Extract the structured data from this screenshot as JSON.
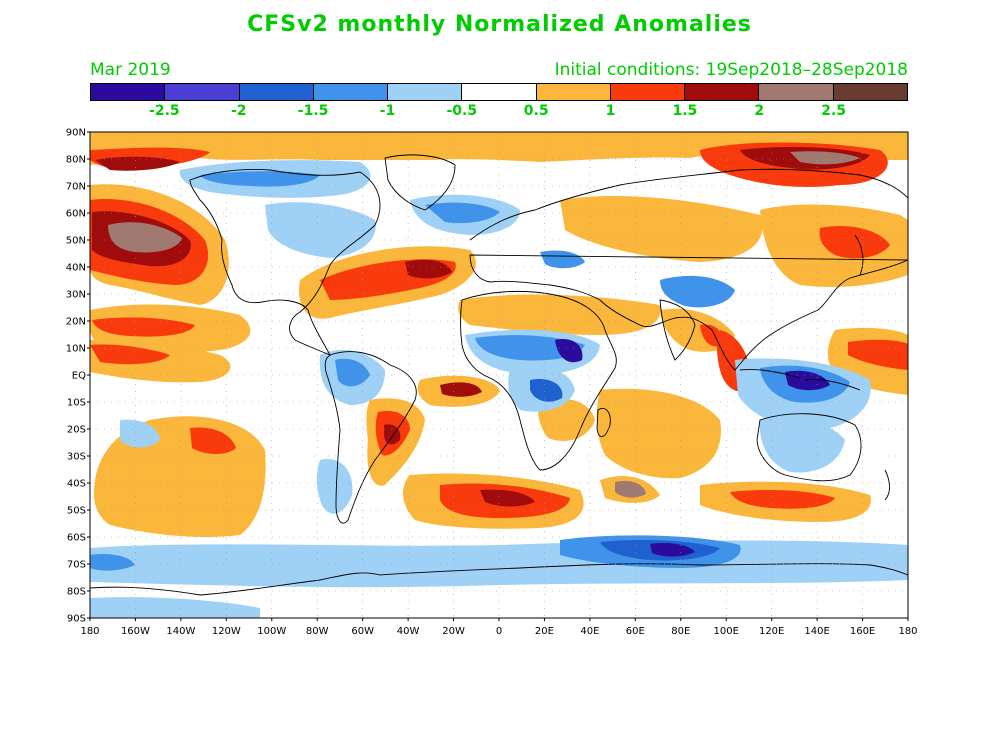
{
  "title": "CFSv2 monthly Normalized Anomalies",
  "month": "Mar 2019",
  "initial_conditions": "Initial conditions: 19Sep2018–28Sep2018",
  "text_color": "#00cc00",
  "colorbar": {
    "colors": [
      "#2b0a9e",
      "#4b3fd1",
      "#1f62cf",
      "#3f93ea",
      "#9fd0f6",
      "#ffffff",
      "#fbb73b",
      "#f83a0c",
      "#a00b0b",
      "#a07a70",
      "#6a3b30"
    ],
    "labels": [
      "-2.5",
      "-2",
      "-1.5",
      "-1",
      "-0.5",
      "0.5",
      "1",
      "1.5",
      "2",
      "2.5"
    ]
  },
  "axes": {
    "lat_labels": [
      "90N",
      "80N",
      "70N",
      "60N",
      "50N",
      "40N",
      "30N",
      "20N",
      "10N",
      "EQ",
      "10S",
      "20S",
      "30S",
      "40S",
      "50S",
      "60S",
      "70S",
      "80S",
      "90S"
    ],
    "lon_labels": [
      "180",
      "160W",
      "140W",
      "120W",
      "100W",
      "80W",
      "60W",
      "40W",
      "20W",
      "0",
      "20E",
      "40E",
      "60E",
      "80E",
      "100E",
      "120E",
      "140E",
      "160E",
      "180"
    ]
  }
}
